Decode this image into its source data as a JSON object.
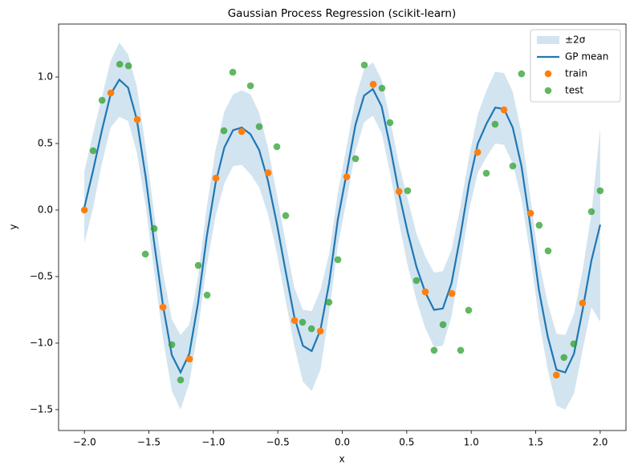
{
  "chart_data": {
    "type": "line",
    "title": "Gaussian Process Regression (scikit-learn)",
    "x_label": "x",
    "y_label": "y",
    "xlim": [
      -2.2,
      2.2
    ],
    "ylim": [
      -1.657,
      1.398
    ],
    "xticks": [
      {
        "value": -2,
        "label": "−2.0"
      },
      {
        "value": -1.5,
        "label": "−1.5"
      },
      {
        "value": -1,
        "label": "−1.0"
      },
      {
        "value": -0.5,
        "label": "−0.5"
      },
      {
        "value": 0,
        "label": "0.0"
      },
      {
        "value": 0.5,
        "label": "0.5"
      },
      {
        "value": 1,
        "label": "1.0"
      },
      {
        "value": 1.5,
        "label": "1.5"
      },
      {
        "value": 2,
        "label": "2.0"
      }
    ],
    "yticks": [
      {
        "value": -1.5,
        "label": "−1.5"
      },
      {
        "value": -1,
        "label": "−1.0"
      },
      {
        "value": -0.5,
        "label": "−0.5"
      },
      {
        "value": 0,
        "label": "0.0"
      },
      {
        "value": 0.5,
        "label": "0.5"
      },
      {
        "value": 1,
        "label": "1.0"
      }
    ],
    "legend": "upper right",
    "x": [
      -2.0,
      -1.932,
      -1.864,
      -1.797,
      -1.729,
      -1.661,
      -1.593,
      -1.525,
      -1.458,
      -1.39,
      -1.322,
      -1.254,
      -1.186,
      -1.119,
      -1.051,
      -0.983,
      -0.915,
      -0.847,
      -0.78,
      -0.712,
      -0.644,
      -0.576,
      -0.508,
      -0.441,
      -0.373,
      -0.305,
      -0.237,
      -0.169,
      -0.102,
      -0.034,
      0.034,
      0.102,
      0.169,
      0.237,
      0.305,
      0.373,
      0.441,
      0.508,
      0.576,
      0.644,
      0.712,
      0.78,
      0.847,
      0.915,
      0.983,
      1.051,
      1.119,
      1.186,
      1.254,
      1.322,
      1.39,
      1.458,
      1.525,
      1.593,
      1.661,
      1.729,
      1.797,
      1.864,
      1.932,
      2.0
    ],
    "series": [
      {
        "name": "±2σ",
        "type": "band",
        "color": "#1f77b4",
        "opacity": 0.2,
        "upper": [
          0.29,
          0.58,
          0.85,
          1.12,
          1.26,
          1.17,
          0.93,
          0.47,
          -0.03,
          -0.47,
          -0.82,
          -0.94,
          -0.86,
          -0.5,
          0.02,
          0.45,
          0.74,
          0.87,
          0.9,
          0.87,
          0.73,
          0.47,
          0.12,
          -0.23,
          -0.58,
          -0.75,
          -0.76,
          -0.6,
          -0.33,
          0.13,
          0.48,
          0.84,
          1.06,
          1.11,
          0.98,
          0.67,
          0.34,
          0.08,
          -0.18,
          -0.35,
          -0.47,
          -0.46,
          -0.3,
          0.02,
          0.4,
          0.72,
          0.9,
          1.04,
          1.03,
          0.89,
          0.58,
          0.1,
          -0.38,
          -0.7,
          -0.93,
          -0.94,
          -0.78,
          -0.45,
          -0.03,
          0.62
        ],
        "lower": [
          -0.25,
          0.02,
          0.35,
          0.62,
          0.7,
          0.67,
          0.43,
          0.03,
          -0.47,
          -0.97,
          -1.36,
          -1.5,
          -1.3,
          -0.9,
          -0.42,
          -0.05,
          0.2,
          0.33,
          0.34,
          0.27,
          0.17,
          -0.03,
          -0.32,
          -0.67,
          -1.02,
          -1.29,
          -1.36,
          -1.2,
          -0.77,
          -0.27,
          0.08,
          0.44,
          0.66,
          0.71,
          0.58,
          0.27,
          -0.1,
          -0.42,
          -0.68,
          -0.89,
          -1.03,
          -1.02,
          -0.8,
          -0.42,
          0.0,
          0.28,
          0.4,
          0.5,
          0.49,
          0.35,
          0.08,
          -0.34,
          -0.82,
          -1.2,
          -1.47,
          -1.5,
          -1.38,
          -1.05,
          -0.73,
          -0.84
        ]
      },
      {
        "name": "GP mean",
        "type": "line",
        "color": "#1f77b4",
        "values": [
          0.02,
          0.3,
          0.6,
          0.87,
          0.98,
          0.92,
          0.68,
          0.25,
          -0.25,
          -0.72,
          -1.09,
          -1.22,
          -1.08,
          -0.7,
          -0.2,
          0.2,
          0.47,
          0.6,
          0.62,
          0.57,
          0.45,
          0.22,
          -0.1,
          -0.45,
          -0.8,
          -1.02,
          -1.06,
          -0.9,
          -0.55,
          -0.07,
          0.28,
          0.64,
          0.86,
          0.91,
          0.78,
          0.47,
          0.12,
          -0.17,
          -0.43,
          -0.62,
          -0.75,
          -0.74,
          -0.55,
          -0.2,
          0.2,
          0.5,
          0.65,
          0.77,
          0.76,
          0.62,
          0.33,
          -0.12,
          -0.6,
          -0.95,
          -1.2,
          -1.22,
          -1.08,
          -0.75,
          -0.38,
          -0.11
        ]
      },
      {
        "name": "train",
        "type": "scatter",
        "color": "#ff7f0e",
        "x": [
          -2.0,
          -1.795,
          -1.59,
          -1.39,
          -1.185,
          -0.98,
          -0.78,
          -0.575,
          -0.37,
          -0.17,
          0.034,
          0.24,
          0.44,
          0.644,
          0.85,
          1.05,
          1.254,
          1.46,
          1.66,
          1.863
        ],
        "values": [
          0.0,
          0.88,
          0.68,
          -0.73,
          -1.12,
          0.24,
          0.59,
          0.28,
          -0.83,
          -0.91,
          0.25,
          0.945,
          0.14,
          -0.615,
          -0.627,
          0.434,
          0.753,
          -0.024,
          -1.24,
          -0.699
        ]
      },
      {
        "name": "test",
        "type": "scatter",
        "color": "#2ca02c",
        "opacity": 0.75,
        "x": [
          -1.932,
          -1.863,
          -1.726,
          -1.658,
          -1.527,
          -1.459,
          -1.322,
          -1.254,
          -1.117,
          -1.048,
          -0.918,
          -0.849,
          -0.712,
          -0.644,
          -0.507,
          -0.439,
          -0.308,
          -0.239,
          -0.103,
          -0.034,
          0.103,
          0.171,
          0.308,
          0.37,
          0.507,
          0.575,
          0.712,
          0.781,
          0.918,
          0.98,
          1.117,
          1.185,
          1.322,
          1.39,
          1.527,
          1.596,
          1.719,
          1.795,
          1.932,
          2.0
        ],
        "values": [
          0.446,
          0.825,
          1.096,
          1.084,
          -0.331,
          -0.139,
          -1.012,
          -1.277,
          -0.416,
          -0.639,
          0.596,
          1.036,
          0.934,
          0.627,
          0.476,
          -0.042,
          -0.843,
          -0.892,
          -0.693,
          -0.373,
          0.386,
          1.09,
          0.916,
          0.657,
          0.145,
          -0.53,
          -1.054,
          -0.861,
          -1.054,
          -0.753,
          0.277,
          0.645,
          0.331,
          1.024,
          -0.114,
          -0.307,
          -1.108,
          -1.006,
          -0.012,
          0.145
        ]
      }
    ]
  }
}
